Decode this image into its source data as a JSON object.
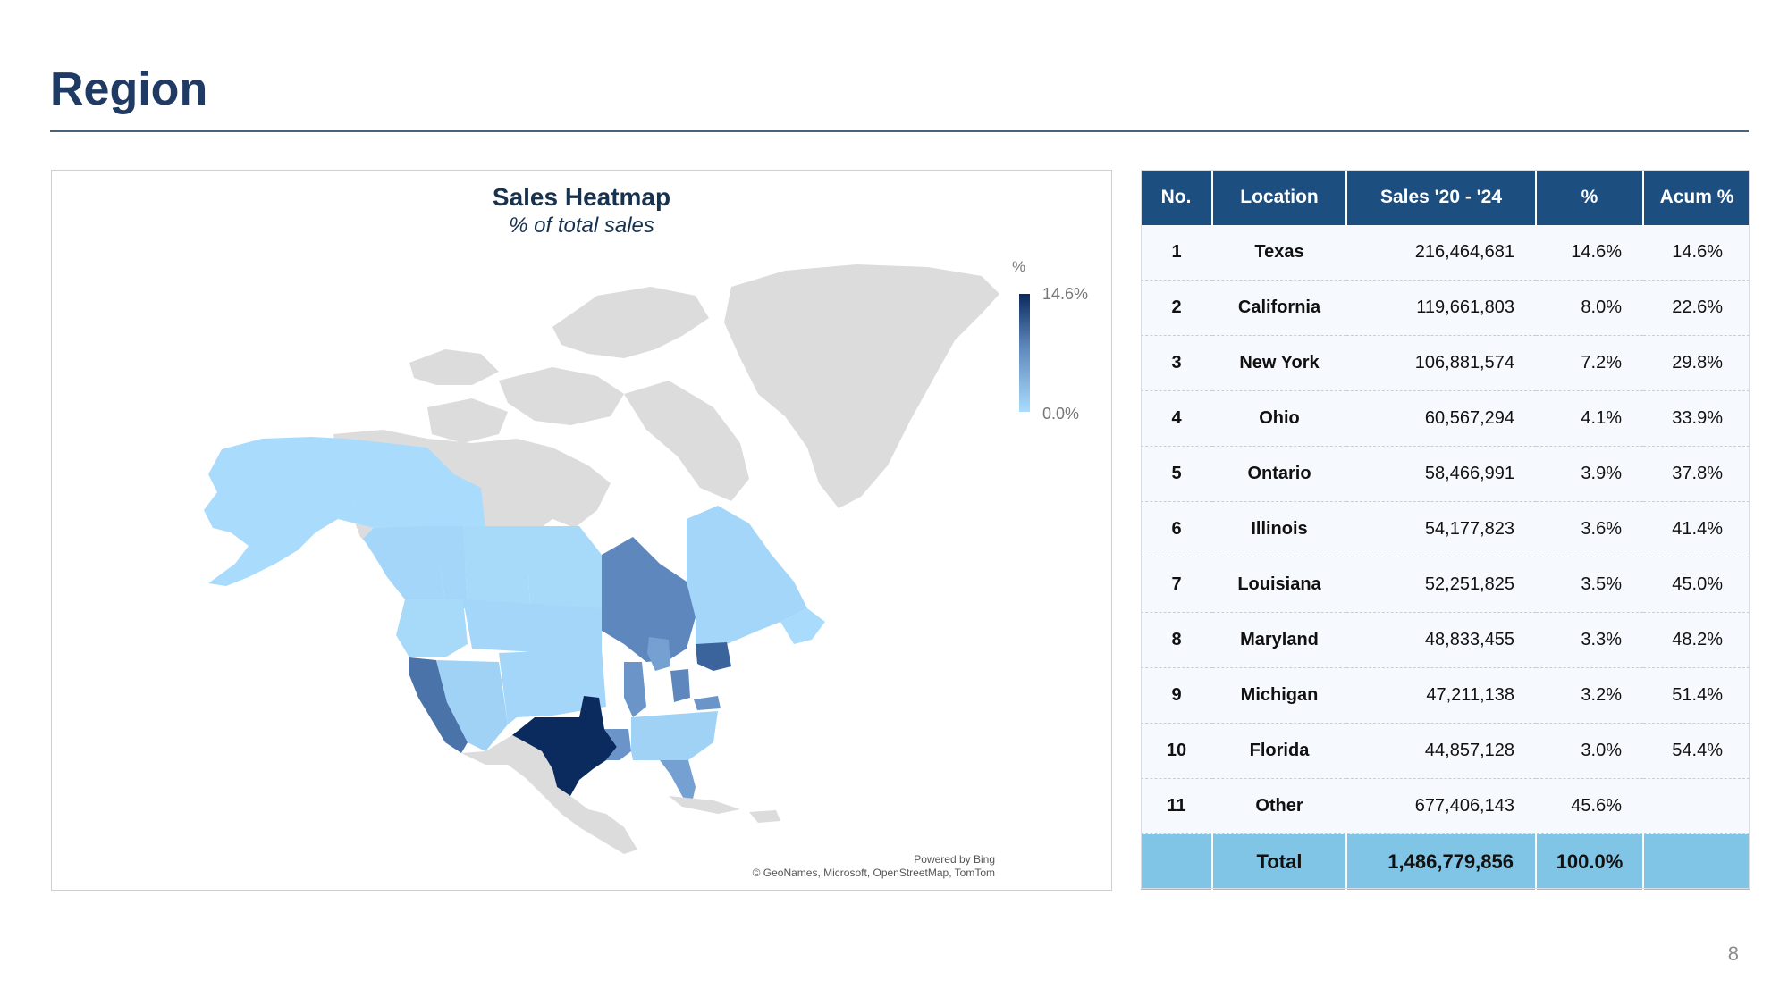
{
  "page": {
    "title": "Region",
    "page_number": "8"
  },
  "map": {
    "title": "Sales Heatmap",
    "subtitle": "% of total sales",
    "legend": {
      "unit": "%",
      "max": "14.6%",
      "min": "0.0%"
    },
    "attribution": {
      "line1": "Powered by Bing",
      "line2": "© GeoNames, Microsoft, OpenStreetMap, TomTom"
    },
    "colors": {
      "no_data": "#dcdcdc",
      "low": "#a9dcfc",
      "high": "#0b2a5e"
    },
    "shaded_regions": [
      {
        "name": "Texas",
        "share": 14.6
      },
      {
        "name": "California",
        "share": 8.0
      },
      {
        "name": "New York",
        "share": 7.2
      },
      {
        "name": "Ohio",
        "share": 4.1
      },
      {
        "name": "Ontario",
        "share": 3.9
      },
      {
        "name": "Illinois",
        "share": 3.6
      },
      {
        "name": "Louisiana",
        "share": 3.5
      },
      {
        "name": "Maryland",
        "share": 3.3
      },
      {
        "name": "Michigan",
        "share": 3.2
      },
      {
        "name": "Florida",
        "share": 3.0
      }
    ]
  },
  "table": {
    "headers": [
      "No.",
      "Location",
      "Sales '20 - '24",
      "%",
      "Acum %"
    ],
    "rows": [
      [
        "1",
        "Texas",
        "216,464,681",
        "14.6%",
        "14.6%"
      ],
      [
        "2",
        "California",
        "119,661,803",
        "8.0%",
        "22.6%"
      ],
      [
        "3",
        "New York",
        "106,881,574",
        "7.2%",
        "29.8%"
      ],
      [
        "4",
        "Ohio",
        "60,567,294",
        "4.1%",
        "33.9%"
      ],
      [
        "5",
        "Ontario",
        "58,466,991",
        "3.9%",
        "37.8%"
      ],
      [
        "6",
        "Illinois",
        "54,177,823",
        "3.6%",
        "41.4%"
      ],
      [
        "7",
        "Louisiana",
        "52,251,825",
        "3.5%",
        "45.0%"
      ],
      [
        "8",
        "Maryland",
        "48,833,455",
        "3.3%",
        "48.2%"
      ],
      [
        "9",
        "Michigan",
        "47,211,138",
        "3.2%",
        "51.4%"
      ],
      [
        "10",
        "Florida",
        "44,857,128",
        "3.0%",
        "54.4%"
      ],
      [
        "11",
        "Other",
        "677,406,143",
        "45.6%",
        ""
      ]
    ],
    "total": [
      "",
      "Total",
      "1,486,779,856",
      "100.0%",
      ""
    ]
  }
}
